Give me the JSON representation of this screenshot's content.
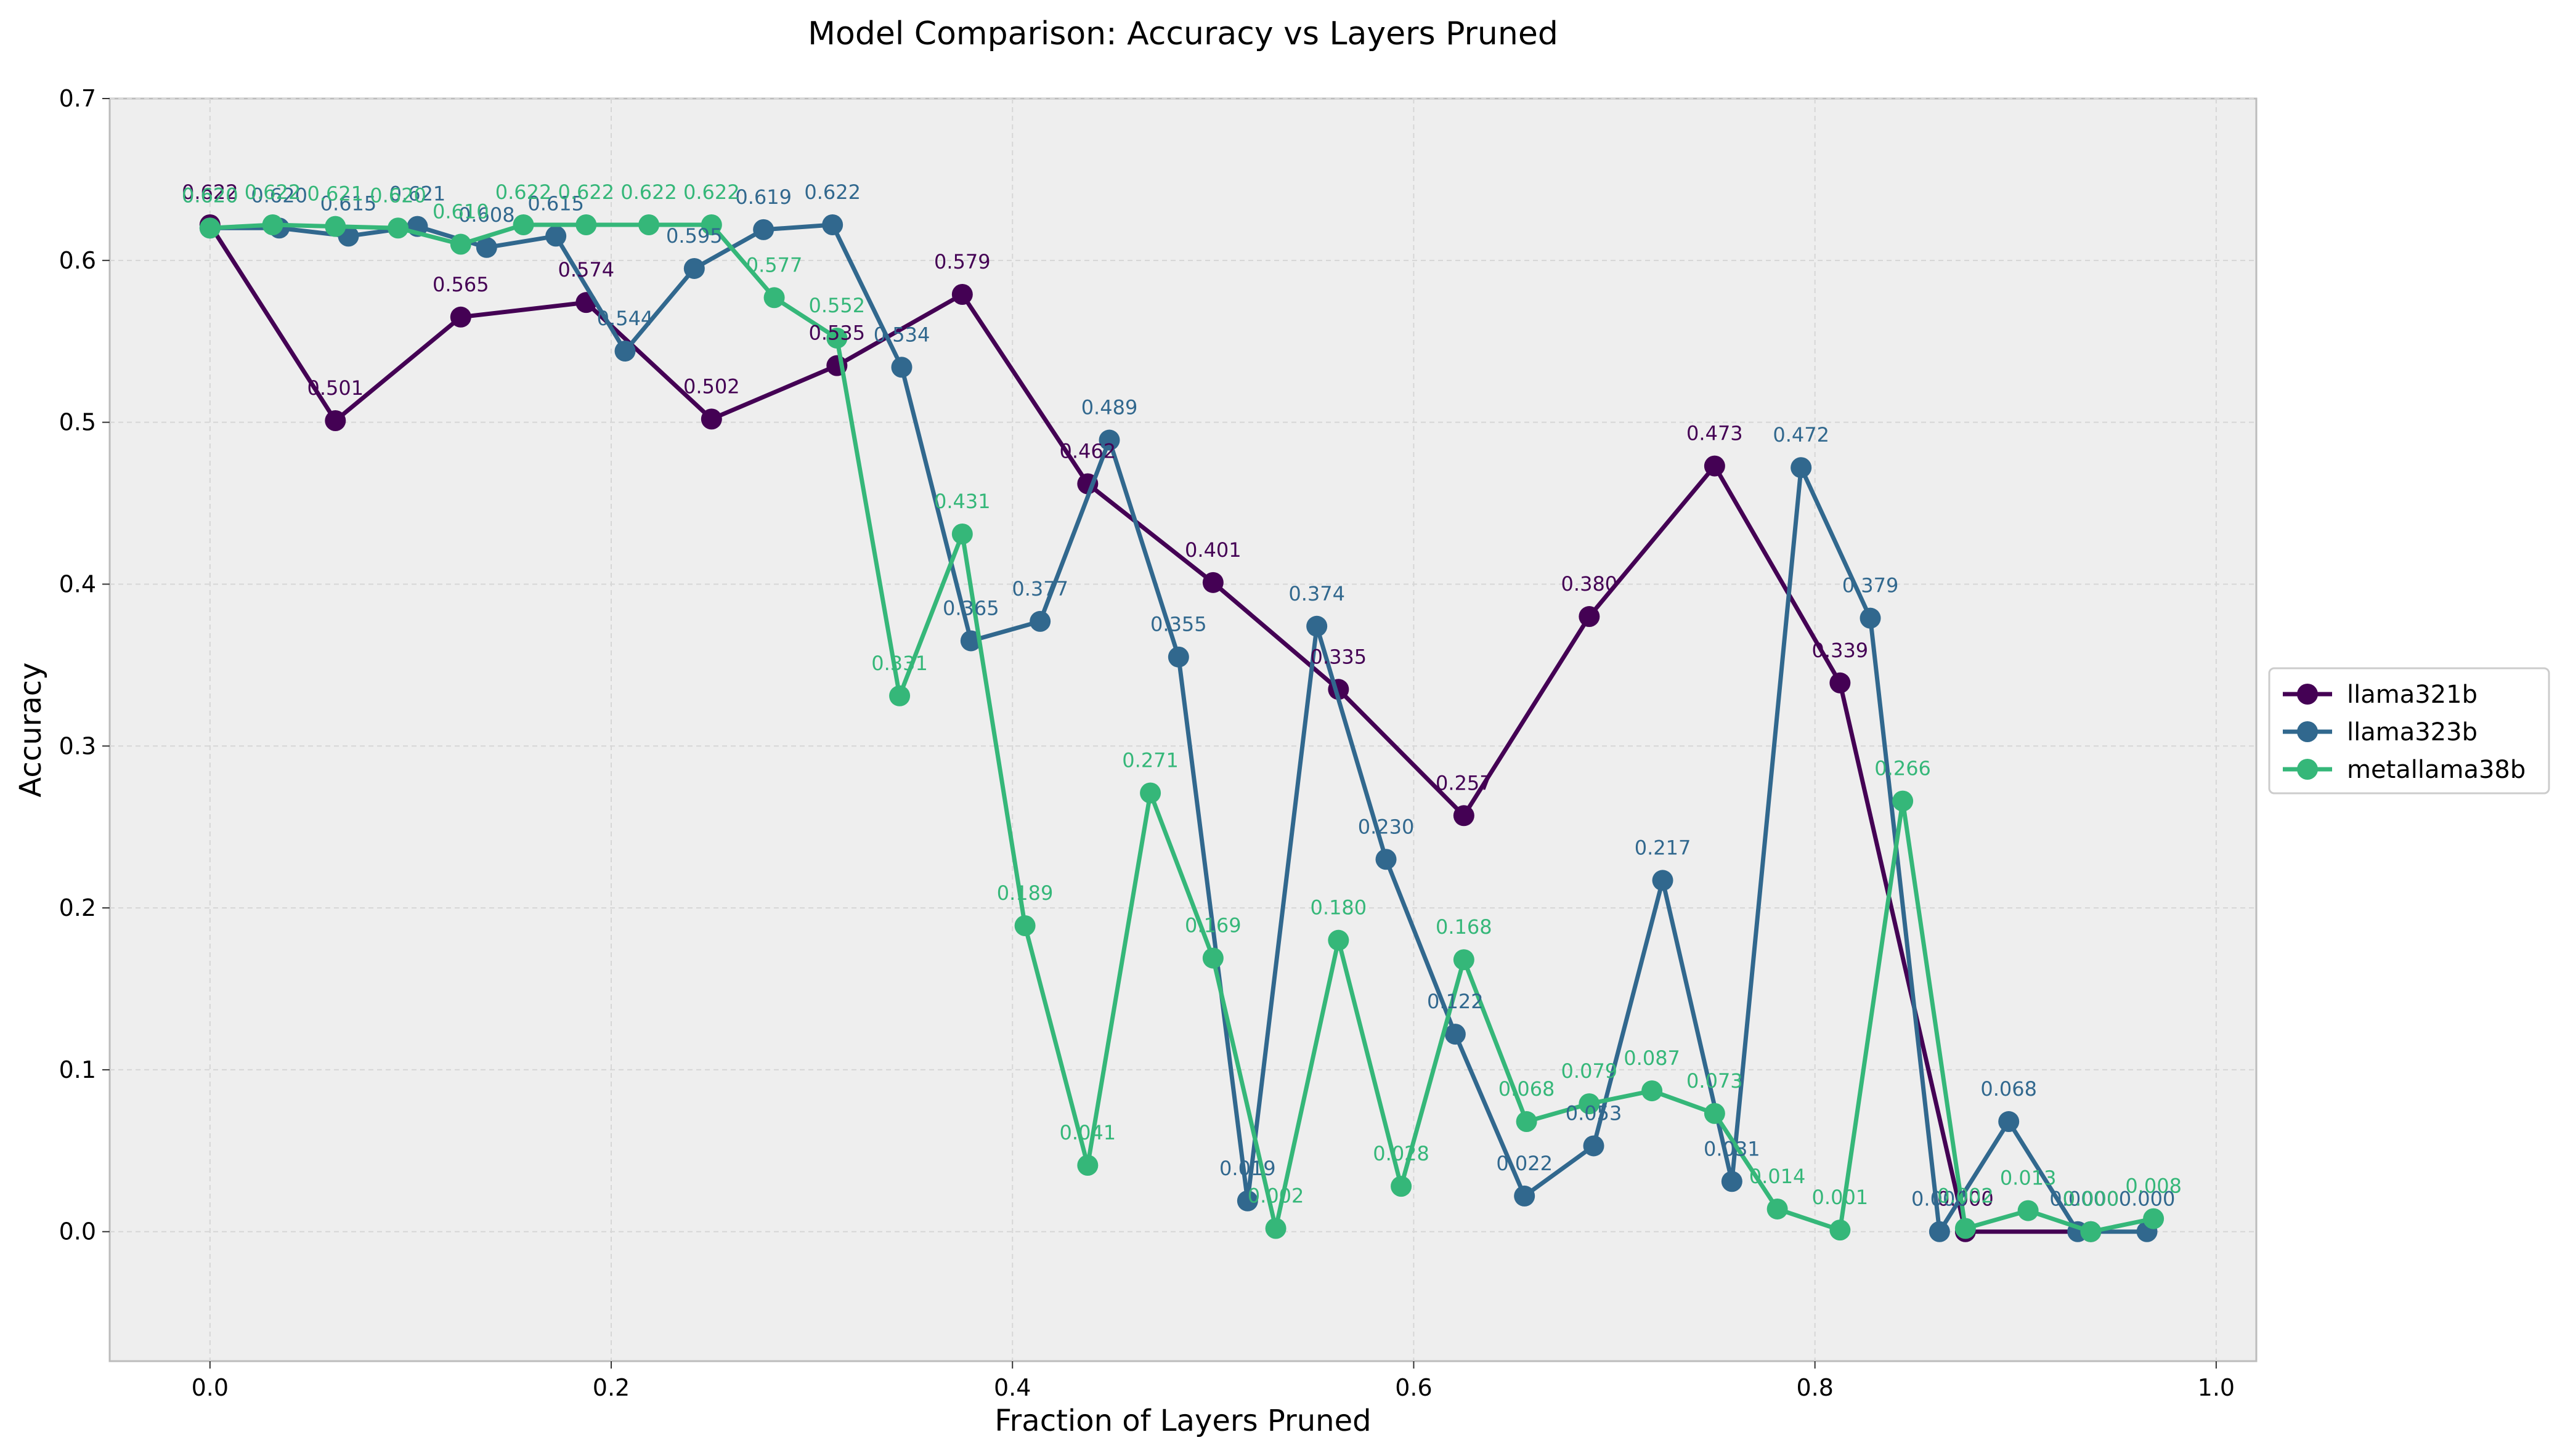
{
  "chart_data": {
    "type": "line",
    "title": "Model Comparison: Accuracy vs Layers Pruned",
    "xlabel": "Fraction of Layers Pruned",
    "ylabel": "Accuracy",
    "xlim": [
      -0.05,
      1.02
    ],
    "ylim": [
      -0.08,
      0.7
    ],
    "xticks": [
      0.0,
      0.2,
      0.4,
      0.6,
      0.8,
      1.0
    ],
    "xtick_labels": [
      "0.0",
      "0.2",
      "0.4",
      "0.6",
      "0.8",
      "1.0"
    ],
    "yticks": [
      0.0,
      0.1,
      0.2,
      0.3,
      0.4,
      0.5,
      0.6,
      0.7
    ],
    "ytick_labels": [
      "0.0",
      "0.1",
      "0.2",
      "0.3",
      "0.4",
      "0.5",
      "0.6",
      "0.7"
    ],
    "grid": true,
    "legend_position": "right-outside",
    "series": [
      {
        "name": "llama321b",
        "color": "#440154",
        "x": [
          0.0,
          0.0625,
          0.125,
          0.1875,
          0.25,
          0.3125,
          0.375,
          0.4375,
          0.5,
          0.5625,
          0.625,
          0.6875,
          0.75,
          0.8125,
          0.875,
          0.9375
        ],
        "y": [
          0.622,
          0.501,
          0.565,
          0.574,
          0.502,
          0.535,
          0.579,
          0.462,
          0.401,
          0.335,
          0.257,
          0.38,
          0.473,
          0.339,
          0.0,
          0.0
        ],
        "labels": [
          "0.622",
          "0.501",
          "0.565",
          "0.574",
          "0.502",
          "0.535",
          "0.579",
          "0.462",
          "0.401",
          "0.335",
          "0.257",
          "0.380",
          "0.473",
          "0.339",
          "0.000",
          "0.000"
        ]
      },
      {
        "name": "llama323b",
        "color": "#31688e",
        "x": [
          0.0,
          0.0345,
          0.069,
          0.1034,
          0.1379,
          0.1724,
          0.2069,
          0.2414,
          0.2759,
          0.3103,
          0.3448,
          0.3793,
          0.4138,
          0.4483,
          0.4828,
          0.5172,
          0.5517,
          0.5862,
          0.6207,
          0.6552,
          0.6897,
          0.7241,
          0.7586,
          0.7931,
          0.8276,
          0.8621,
          0.8966,
          0.931,
          0.9655
        ],
        "y": [
          0.62,
          0.62,
          0.615,
          0.621,
          0.608,
          0.615,
          0.544,
          0.595,
          0.619,
          0.622,
          0.534,
          0.365,
          0.377,
          0.489,
          0.355,
          0.019,
          0.374,
          0.23,
          0.122,
          0.022,
          0.053,
          0.217,
          0.031,
          0.472,
          0.379,
          0.0,
          0.068,
          0.0,
          0.0
        ],
        "labels": [
          "0.620",
          "0.620",
          "0.615",
          "0.621",
          "0.608",
          "0.615",
          "0.544",
          "0.595",
          "0.619",
          "0.622",
          "0.534",
          "0.365",
          "0.377",
          "0.489",
          "0.355",
          "0.019",
          "0.374",
          "0.230",
          "0.122",
          "0.022",
          "0.053",
          "0.217",
          "0.031",
          "0.472",
          "0.379",
          "0.000",
          "0.068",
          "0.000",
          "0.000"
        ]
      },
      {
        "name": "metallama38b",
        "color": "#35b779",
        "x": [
          0.0,
          0.03125,
          0.0625,
          0.09375,
          0.125,
          0.15625,
          0.1875,
          0.21875,
          0.25,
          0.28125,
          0.3125,
          0.34375,
          0.375,
          0.40625,
          0.4375,
          0.46875,
          0.5,
          0.53125,
          0.5625,
          0.59375,
          0.625,
          0.65625,
          0.6875,
          0.71875,
          0.75,
          0.78125,
          0.8125,
          0.84375,
          0.875,
          0.90625,
          0.9375,
          0.96875
        ],
        "y": [
          0.62,
          0.622,
          0.621,
          0.62,
          0.61,
          0.622,
          0.622,
          0.622,
          0.622,
          0.577,
          0.552,
          0.331,
          0.431,
          0.189,
          0.041,
          0.271,
          0.169,
          0.002,
          0.18,
          0.028,
          0.168,
          0.068,
          0.079,
          0.087,
          0.073,
          0.014,
          0.001,
          0.266,
          0.002,
          0.013,
          0.0,
          0.008
        ],
        "labels": [
          "0.620",
          "0.622",
          "0.621",
          "0.620",
          "0.610",
          "0.622",
          "0.622",
          "0.622",
          "0.622",
          "0.577",
          "0.552",
          "0.331",
          "0.431",
          "0.189",
          "0.041",
          "0.271",
          "0.169",
          "0.002",
          "0.180",
          "0.028",
          "0.168",
          "0.068",
          "0.079",
          "0.087",
          "0.073",
          "0.014",
          "0.001",
          "0.266",
          "0.002",
          "0.013",
          "0.000",
          "0.008"
        ]
      }
    ]
  }
}
